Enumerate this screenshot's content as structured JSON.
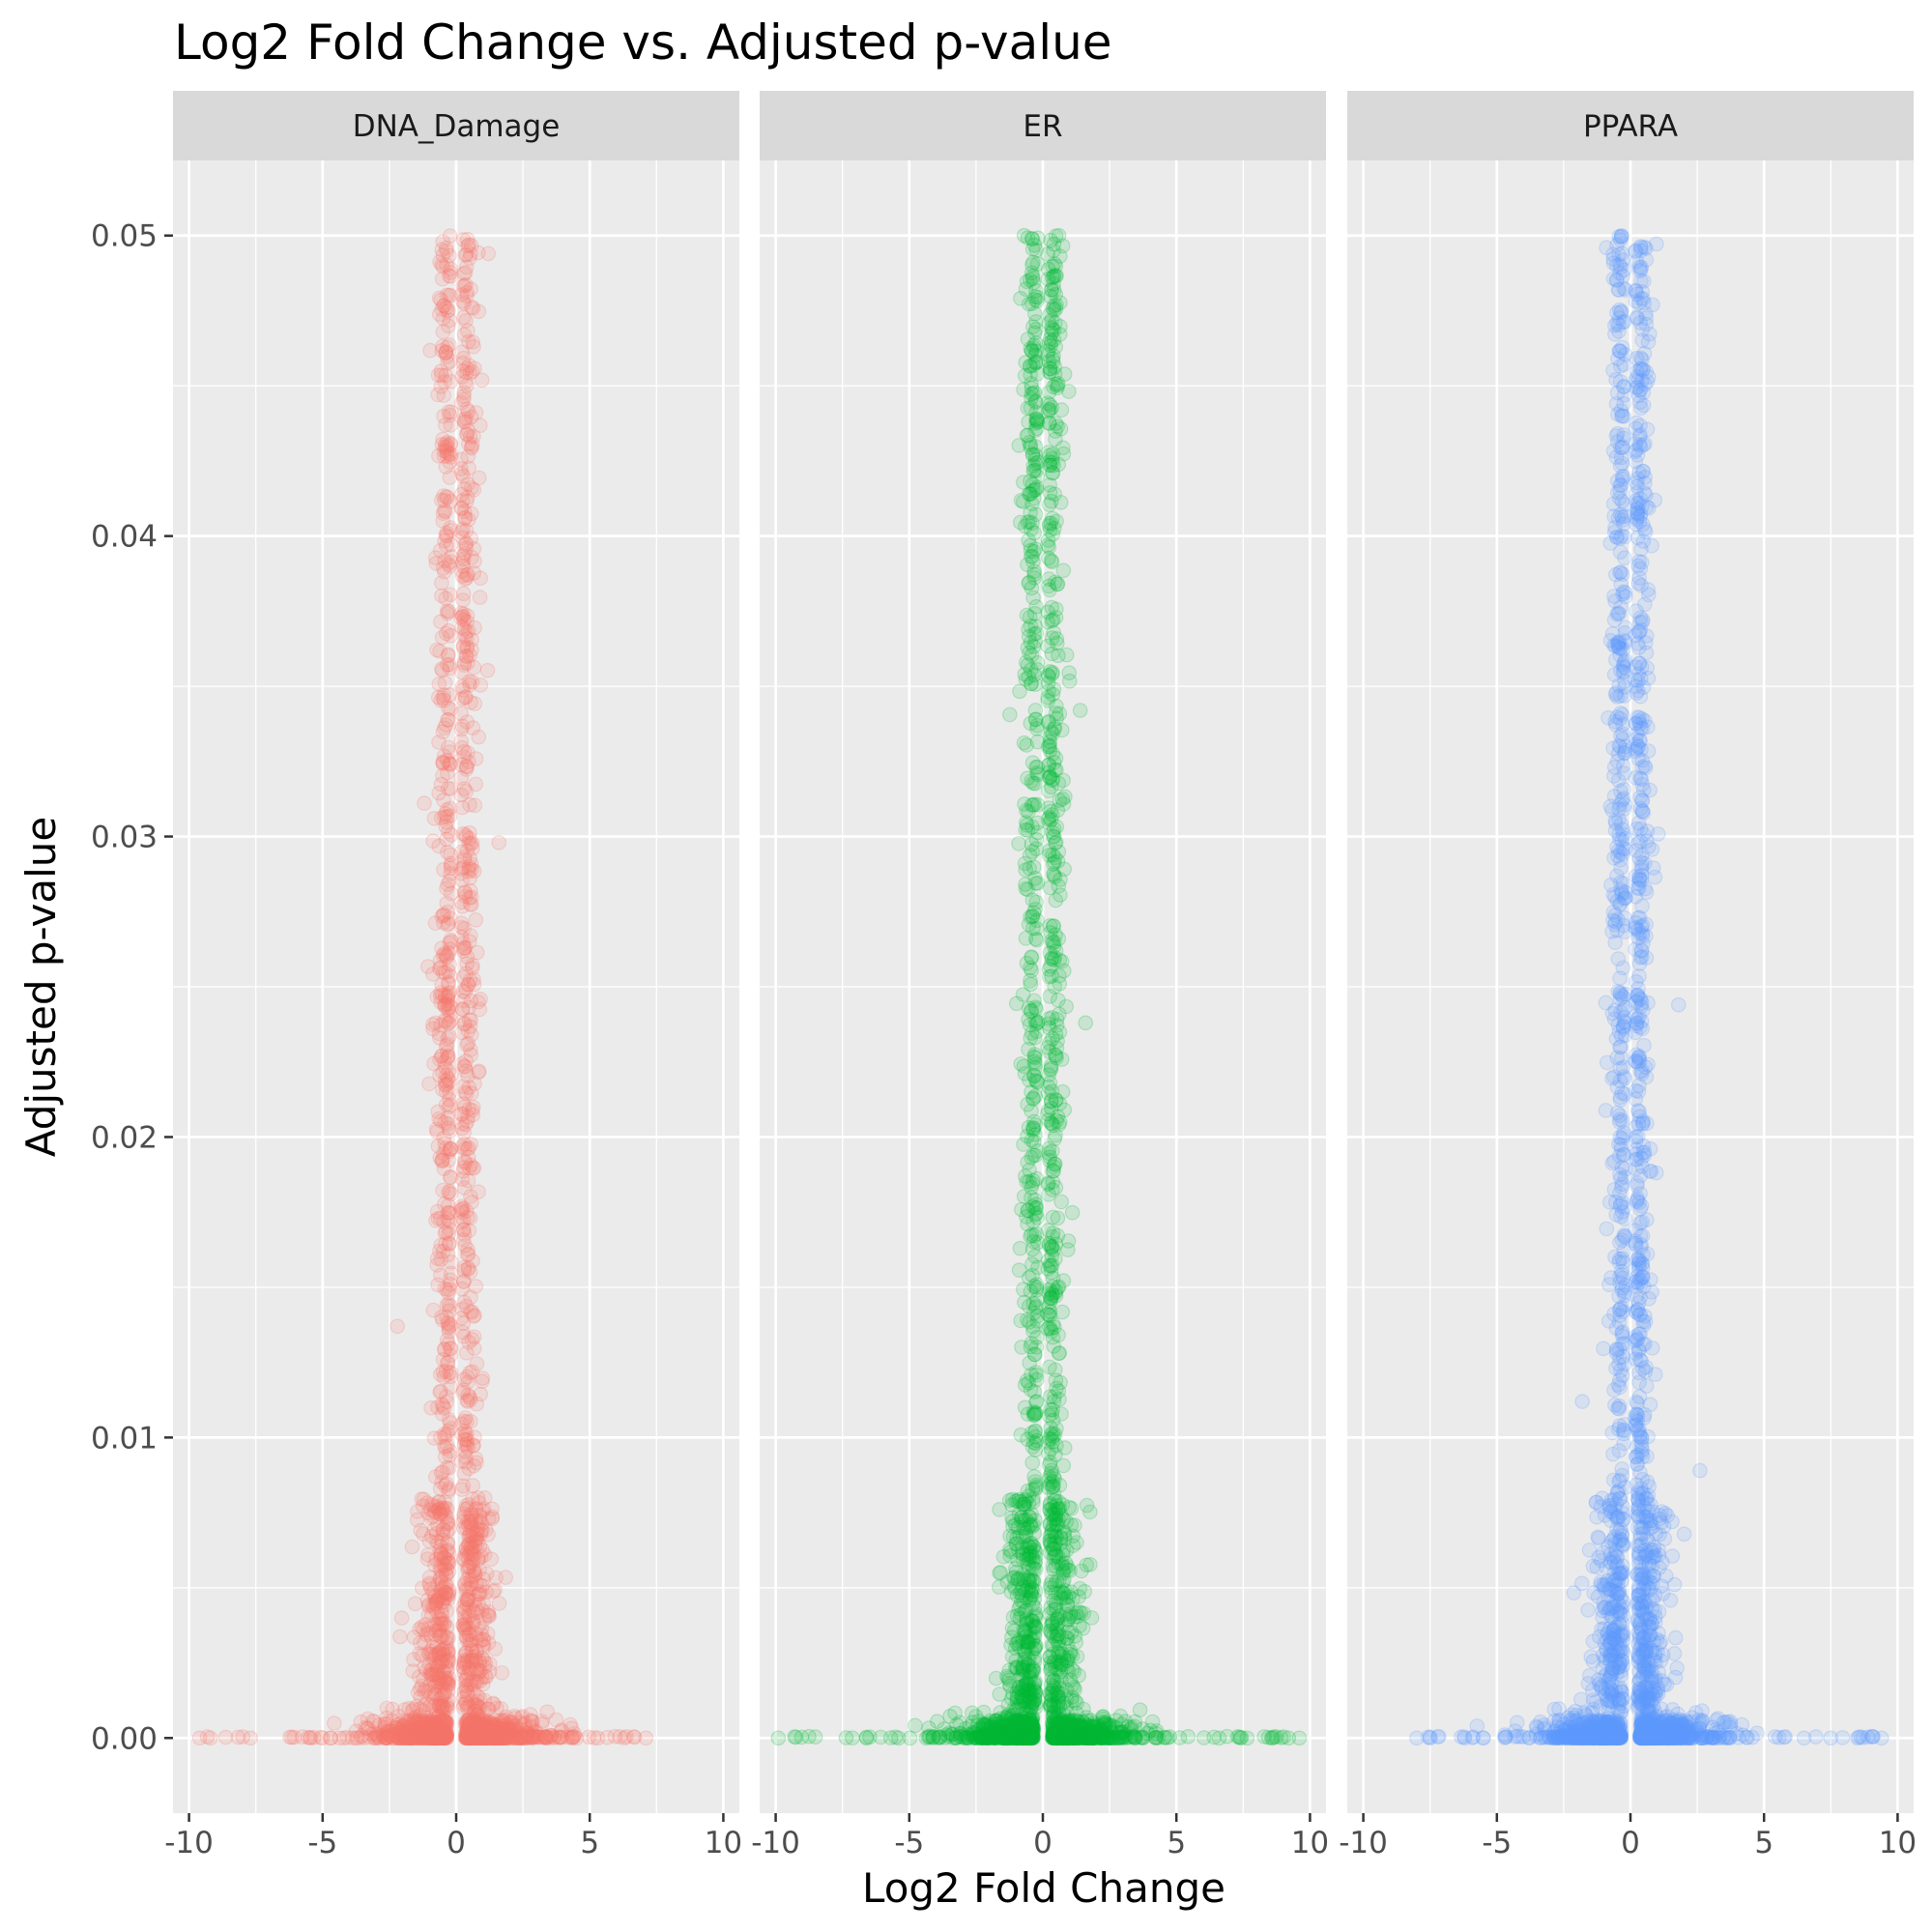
{
  "chart_data": {
    "type": "scatter",
    "title": "Log2 Fold Change vs. Adjusted p-value",
    "xlabel": "Log2 Fold Change",
    "ylabel": "Adjusted p-value",
    "xlim": [
      -10.6,
      10.6
    ],
    "ylim": [
      -0.0025,
      0.0525
    ],
    "x_ticks": [
      -10,
      -5,
      0,
      5,
      10
    ],
    "x_tick_labels": [
      "-10",
      "-5",
      "0",
      "5",
      "10"
    ],
    "y_ticks": [
      0,
      0.01,
      0.02,
      0.03,
      0.04,
      0.05
    ],
    "y_tick_labels": [
      "0.00",
      "0.01",
      "0.02",
      "0.03",
      "0.04",
      "0.05"
    ],
    "grid": true,
    "legend": "none",
    "point_alpha": 0.15,
    "facets": [
      {
        "label": "DNA_Damage",
        "color": "#F8766D",
        "approx_points": 2600,
        "seed": 11,
        "x_range_at_zero": [
          -9.8,
          7.2
        ],
        "sample_points": [
          {
            "x": -9.6,
            "y": 0
          },
          {
            "x": -9.2,
            "y": 0
          },
          {
            "x": -7.7,
            "y": 0
          },
          {
            "x": -5.0,
            "y": 0
          },
          {
            "x": -4.2,
            "y": 0
          },
          {
            "x": 4.5,
            "y": 0
          },
          {
            "x": 5.3,
            "y": 0
          },
          {
            "x": 6.3,
            "y": 0
          },
          {
            "x": 7.1,
            "y": 0
          },
          {
            "x": -2.2,
            "y": 0.0137
          },
          {
            "x": 1.6,
            "y": 0.0298
          },
          {
            "x": -0.5,
            "y": 0.0498
          },
          {
            "x": 1.2,
            "y": 0.0494
          }
        ]
      },
      {
        "label": "ER",
        "color": "#00BA38",
        "approx_points": 2600,
        "seed": 23,
        "x_range_at_zero": [
          -9.9,
          9.6
        ],
        "sample_points": [
          {
            "x": -9.9,
            "y": 0
          },
          {
            "x": -6.6,
            "y": 0
          },
          {
            "x": -5.4,
            "y": 0
          },
          {
            "x": 6.6,
            "y": 0
          },
          {
            "x": 7.4,
            "y": 0
          },
          {
            "x": 8.6,
            "y": 0
          },
          {
            "x": 9.2,
            "y": 0
          },
          {
            "x": 9.6,
            "y": 0
          },
          {
            "x": 1.4,
            "y": 0.0342
          },
          {
            "x": 1.6,
            "y": 0.0238
          },
          {
            "x": -0.7,
            "y": 0.05
          },
          {
            "x": 0.6,
            "y": 0.05
          }
        ]
      },
      {
        "label": "PPARA",
        "color": "#619CFF",
        "approx_points": 2600,
        "seed": 37,
        "x_range_at_zero": [
          -8.0,
          9.4
        ],
        "sample_points": [
          {
            "x": -8.0,
            "y": 0
          },
          {
            "x": -7.5,
            "y": 0
          },
          {
            "x": -6.2,
            "y": 0
          },
          {
            "x": -5.5,
            "y": 0
          },
          {
            "x": 6.5,
            "y": 0
          },
          {
            "x": 7.5,
            "y": 0
          },
          {
            "x": 8.5,
            "y": 0
          },
          {
            "x": 9.4,
            "y": 0
          },
          {
            "x": -1.8,
            "y": 0.0112
          },
          {
            "x": 2.6,
            "y": 0.0089
          },
          {
            "x": 1.8,
            "y": 0.0244
          },
          {
            "x": -0.9,
            "y": 0.0496
          },
          {
            "x": 0.4,
            "y": 0.0496
          }
        ]
      }
    ]
  }
}
